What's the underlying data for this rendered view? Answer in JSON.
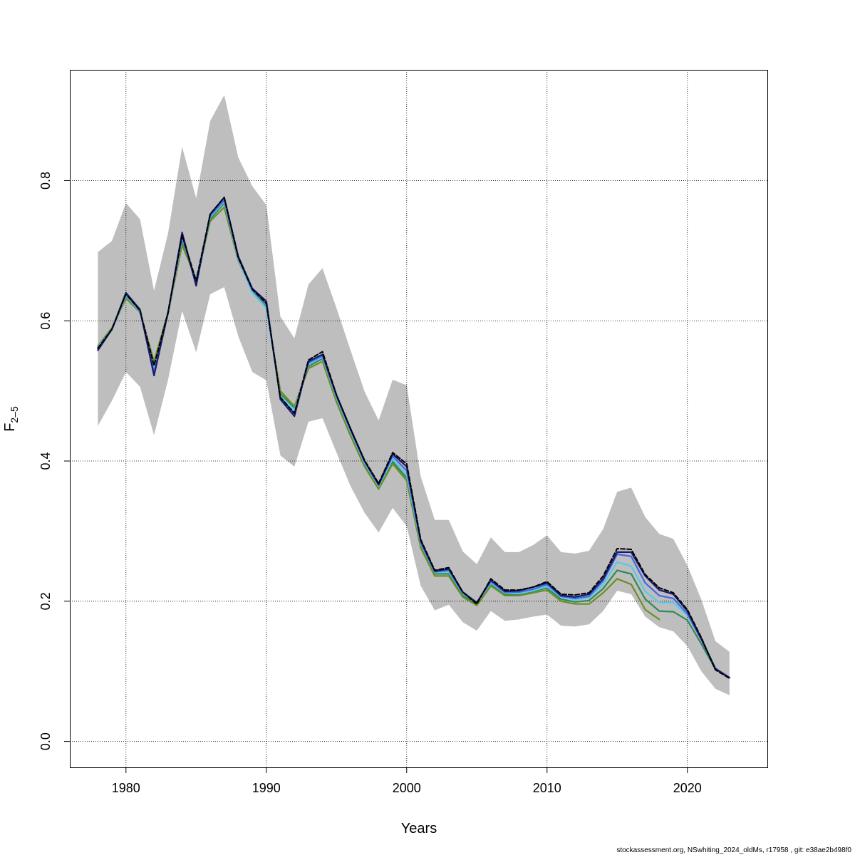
{
  "chart_data": {
    "type": "line",
    "title": "",
    "xlabel": "Years",
    "ylabel_main": "F",
    "ylabel_sub": "2–5",
    "xlim": [
      1976,
      2025.7
    ],
    "ylim": [
      -0.037,
      0.958
    ],
    "xticks": [
      1980,
      1990,
      2000,
      2010,
      2020
    ],
    "yticks": [
      0.0,
      0.2,
      0.4,
      0.6,
      0.8
    ],
    "xtick_labels": [
      "1980",
      "1990",
      "2000",
      "2010",
      "2020"
    ],
    "ytick_labels": [
      "0.0",
      "0.2",
      "0.4",
      "0.6",
      "0.8"
    ],
    "grid": true,
    "footer": "stockassessment.org, NSwhiting_2024_oldMs, r17958 , git: e38ae2b498f0",
    "band": {
      "x": [
        1978,
        1979,
        1980,
        1981,
        1982,
        1983,
        1984,
        1985,
        1986,
        1987,
        1988,
        1989,
        1990,
        1991,
        1992,
        1993,
        1994,
        1995,
        1996,
        1997,
        1998,
        1999,
        2000,
        2001,
        2002,
        2003,
        2004,
        2005,
        2006,
        2007,
        2008,
        2009,
        2010,
        2011,
        2012,
        2013,
        2014,
        2015,
        2016,
        2017,
        2018,
        2019,
        2020,
        2021,
        2022,
        2023
      ],
      "upper": [
        0.698,
        0.714,
        0.768,
        0.745,
        0.643,
        0.725,
        0.848,
        0.775,
        0.885,
        0.922,
        0.833,
        0.792,
        0.765,
        0.606,
        0.575,
        0.652,
        0.675,
        0.618,
        0.558,
        0.499,
        0.458,
        0.516,
        0.508,
        0.378,
        0.316,
        0.316,
        0.271,
        0.253,
        0.291,
        0.27,
        0.27,
        0.28,
        0.294,
        0.27,
        0.268,
        0.272,
        0.303,
        0.356,
        0.362,
        0.32,
        0.296,
        0.289,
        0.251,
        0.202,
        0.143,
        0.128
      ],
      "lower": [
        0.45,
        0.486,
        0.527,
        0.506,
        0.437,
        0.516,
        0.614,
        0.555,
        0.638,
        0.648,
        0.578,
        0.527,
        0.515,
        0.408,
        0.392,
        0.456,
        0.461,
        0.412,
        0.364,
        0.326,
        0.298,
        0.333,
        0.307,
        0.222,
        0.187,
        0.195,
        0.17,
        0.158,
        0.186,
        0.172,
        0.174,
        0.178,
        0.181,
        0.165,
        0.164,
        0.167,
        0.186,
        0.215,
        0.21,
        0.178,
        0.163,
        0.157,
        0.136,
        0.1,
        0.075,
        0.066
      ],
      "color": "#bebebe"
    },
    "series": [
      {
        "color": "#2e8b57",
        "x": [
          1978,
          1979,
          1980,
          1981,
          1982,
          1983,
          1984,
          1985,
          1986,
          1987,
          1988,
          1989,
          1990,
          1991,
          1992,
          1993,
          1994,
          1995,
          1996,
          1997,
          1998,
          1999,
          2000,
          2001,
          2002,
          2003,
          2004,
          2005,
          2006,
          2007,
          2008,
          2009,
          2010,
          2011,
          2012,
          2013,
          2014,
          2015,
          2016,
          2017,
          2018,
          2019,
          2020,
          2021,
          2022,
          2023
        ],
        "y": [
          0.562,
          0.588,
          0.634,
          0.612,
          0.538,
          0.61,
          0.714,
          0.655,
          0.745,
          0.768,
          0.688,
          0.642,
          0.62,
          0.496,
          0.476,
          0.535,
          0.546,
          0.488,
          0.44,
          0.394,
          0.362,
          0.399,
          0.376,
          0.279,
          0.239,
          0.239,
          0.208,
          0.196,
          0.224,
          0.21,
          0.21,
          0.214,
          0.219,
          0.203,
          0.199,
          0.201,
          0.218,
          0.244,
          0.239,
          0.203,
          0.186,
          0.185,
          0.173,
          0.139,
          0.103,
          0.091
        ]
      },
      {
        "color": "#6b8e23",
        "x": [
          1978,
          1979,
          1980,
          1981,
          1982,
          1983,
          1984,
          1985,
          1986,
          1987,
          1988,
          1989,
          1990,
          1991,
          1992,
          1993,
          1994,
          1995,
          1996,
          1997,
          1998,
          1999,
          2000,
          2001,
          2002,
          2003,
          2004,
          2005,
          2006,
          2007,
          2008,
          2009,
          2010,
          2011,
          2012,
          2013,
          2014,
          2015,
          2016,
          2017,
          2018,
          2019,
          2020,
          2021,
          2022,
          2023
        ],
        "y": [
          0.564,
          0.59,
          0.632,
          0.612,
          0.542,
          0.612,
          0.708,
          0.66,
          0.742,
          0.762,
          0.686,
          0.642,
          0.618,
          0.5,
          0.478,
          0.532,
          0.542,
          0.484,
          0.436,
          0.392,
          0.36,
          0.396,
          0.372,
          0.276,
          0.236,
          0.236,
          0.206,
          0.194,
          0.222,
          0.208,
          0.208,
          0.212,
          0.216,
          0.2,
          0.196,
          0.196,
          0.212,
          0.232,
          0.224,
          0.188,
          0.174,
          null,
          null,
          null,
          null,
          null
        ]
      },
      {
        "color": "#5bc8e8",
        "x": [
          1978,
          1979,
          1980,
          1981,
          1982,
          1983,
          1984,
          1985,
          1986,
          1987,
          1988,
          1989,
          1990,
          1991,
          1992,
          1993,
          1994,
          1995,
          1996,
          1997,
          1998,
          1999,
          2000,
          2001,
          2002,
          2003,
          2004,
          2005,
          2006,
          2007,
          2008,
          2009,
          2010,
          2011,
          2012,
          2013,
          2014,
          2015,
          2016,
          2017,
          2018,
          2019,
          2020,
          2021,
          2022,
          2023
        ],
        "y": [
          0.562,
          0.588,
          0.636,
          0.613,
          0.53,
          0.612,
          0.718,
          0.658,
          0.748,
          0.77,
          0.688,
          0.64,
          0.618,
          0.492,
          0.472,
          0.538,
          0.548,
          0.49,
          0.442,
          0.397,
          0.364,
          0.403,
          0.38,
          0.282,
          0.241,
          0.242,
          0.211,
          0.198,
          0.226,
          0.212,
          0.211,
          0.215,
          0.221,
          0.206,
          0.202,
          0.205,
          0.224,
          0.256,
          0.25,
          0.214,
          0.198,
          0.198,
          0.18,
          0.146,
          0.104,
          0.091
        ]
      },
      {
        "color": "#4169e1",
        "x": [
          1978,
          1979,
          1980,
          1981,
          1982,
          1983,
          1984,
          1985,
          1986,
          1987,
          1988,
          1989,
          1990,
          1991,
          1992,
          1993,
          1994,
          1995,
          1996,
          1997,
          1998,
          1999,
          2000,
          2001,
          2002,
          2003,
          2004,
          2005,
          2006,
          2007,
          2008,
          2009,
          2010,
          2011,
          2012,
          2013,
          2014,
          2015,
          2016,
          2017,
          2018,
          2019,
          2020,
          2021,
          2022,
          2023
        ],
        "y": [
          0.56,
          0.588,
          0.638,
          0.614,
          0.526,
          0.612,
          0.72,
          0.654,
          0.75,
          0.772,
          0.69,
          0.644,
          0.624,
          0.49,
          0.468,
          0.54,
          0.55,
          0.492,
          0.444,
          0.399,
          0.366,
          0.407,
          0.386,
          0.284,
          0.242,
          0.244,
          0.212,
          0.198,
          0.228,
          0.213,
          0.213,
          0.217,
          0.224,
          0.207,
          0.204,
          0.207,
          0.229,
          0.267,
          0.264,
          0.226,
          0.208,
          0.204,
          0.182,
          0.145,
          0.104,
          0.091
        ]
      },
      {
        "color": "#191970",
        "x": [
          1978,
          1979,
          1980,
          1981,
          1982,
          1983,
          1984,
          1985,
          1986,
          1987,
          1988,
          1989,
          1990,
          1991,
          1992,
          1993,
          1994,
          1995,
          1996,
          1997,
          1998,
          1999,
          2000,
          2001,
          2002,
          2003,
          2004,
          2005,
          2006,
          2007,
          2008,
          2009,
          2010,
          2011,
          2012,
          2013,
          2014,
          2015,
          2016,
          2017,
          2018,
          2019,
          2020,
          2021,
          2022,
          2023
        ],
        "y": [
          0.558,
          0.588,
          0.64,
          0.616,
          0.522,
          0.612,
          0.726,
          0.65,
          0.752,
          0.776,
          0.692,
          0.646,
          0.628,
          0.488,
          0.464,
          0.542,
          0.552,
          0.494,
          0.446,
          0.4,
          0.366,
          0.41,
          0.392,
          0.286,
          0.243,
          0.246,
          0.213,
          0.198,
          0.23,
          0.214,
          0.215,
          0.22,
          0.226,
          0.208,
          0.206,
          0.21,
          0.232,
          0.27,
          0.27,
          0.236,
          0.216,
          0.21,
          0.186,
          0.146,
          0.104,
          0.091
        ]
      },
      {
        "color": "#000000",
        "x": [
          1978,
          1979,
          1980,
          1981,
          1982,
          1983,
          1984,
          1985,
          1986,
          1987,
          1988,
          1989,
          1990,
          1991,
          1992,
          1993,
          1994,
          1995,
          1996,
          1997,
          1998,
          1999,
          2000,
          2001,
          2002,
          2003,
          2004,
          2005,
          2006,
          2007,
          2008,
          2009,
          2010,
          2011,
          2012,
          2013,
          2014,
          2015,
          2016,
          2017,
          2018,
          2019,
          2020,
          2021,
          2022,
          2023
        ],
        "y": [
          0.561,
          0.588,
          0.638,
          0.615,
          0.536,
          0.612,
          0.722,
          0.657,
          0.752,
          0.776,
          0.69,
          0.645,
          0.625,
          0.491,
          0.468,
          0.544,
          0.556,
          0.494,
          0.446,
          0.401,
          0.368,
          0.412,
          0.396,
          0.288,
          0.244,
          0.248,
          0.213,
          0.196,
          0.232,
          0.216,
          0.216,
          0.22,
          0.228,
          0.21,
          0.209,
          0.212,
          0.236,
          0.275,
          0.274,
          0.238,
          0.219,
          0.212,
          0.188,
          0.148,
          0.102,
          0.09
        ],
        "dashed": true
      }
    ]
  }
}
